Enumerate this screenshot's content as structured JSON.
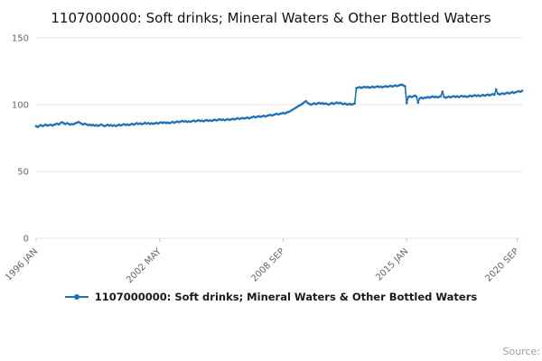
{
  "page": {
    "title": "1107000000: Soft drinks; Mineral Waters & Other Bottled Waters",
    "source_label": "Source:"
  },
  "legend": {
    "items": [
      {
        "label": "1107000000: Soft drinks; Mineral Waters & Other Bottled Waters"
      }
    ]
  },
  "colors": {
    "line": "#1d70b8",
    "grid": "#e4e4e4",
    "tick": "#cccccc",
    "axis_text": "#666666"
  },
  "chart_data": {
    "type": "line",
    "title": "1107000000: Soft drinks; Mineral Waters & Other Bottled Waters",
    "frequency": "monthly",
    "x_start": "1996 JAN",
    "x_end": "2020 DEC",
    "ylim": [
      0,
      150
    ],
    "yticks": [
      0,
      50,
      100,
      150
    ],
    "xticks": [
      {
        "label": "1996 JAN",
        "index": 0
      },
      {
        "label": "2002 MAY",
        "index": 76
      },
      {
        "label": "2008 SEP",
        "index": 152
      },
      {
        "label": "2015 JAN",
        "index": 228
      },
      {
        "label": "2020 SEP",
        "index": 296
      }
    ],
    "grid": true,
    "legend_position": "bottom",
    "series": [
      {
        "name": "1107000000: Soft drinks; Mineral Waters & Other Bottled Waters",
        "values": [
          84.0,
          83.3,
          84.2,
          84.7,
          83.9,
          84.5,
          85.1,
          84.3,
          84.8,
          85.0,
          84.4,
          84.9,
          85.4,
          85.9,
          85.2,
          86.3,
          86.9,
          86.1,
          85.5,
          86.2,
          85.7,
          85.1,
          85.6,
          85.3,
          86.0,
          86.5,
          87.0,
          86.4,
          85.7,
          85.2,
          85.8,
          85.3,
          84.7,
          85.1,
          84.5,
          84.9,
          84.3,
          84.8,
          84.1,
          84.6,
          85.2,
          84.5,
          83.9,
          84.4,
          85.0,
          84.3,
          84.7,
          84.2,
          84.6,
          84.0,
          84.5,
          85.1,
          84.4,
          84.9,
          85.5,
          84.8,
          85.3,
          84.7,
          85.2,
          85.7,
          85.1,
          85.6,
          86.2,
          85.5,
          86.0,
          85.4,
          85.9,
          86.4,
          85.8,
          86.3,
          85.7,
          86.1,
          85.6,
          86.0,
          86.5,
          85.9,
          86.4,
          86.9,
          86.3,
          86.8,
          86.2,
          86.7,
          86.1,
          86.6,
          87.1,
          86.5,
          87.0,
          87.5,
          86.9,
          87.4,
          87.9,
          87.3,
          87.7,
          87.1,
          87.6,
          87.2,
          87.7,
          88.1,
          87.5,
          88.0,
          88.4,
          87.8,
          88.2,
          87.6,
          88.1,
          88.5,
          87.9,
          88.3,
          87.9,
          88.4,
          88.8,
          88.2,
          88.7,
          89.1,
          88.5,
          88.9,
          88.3,
          88.8,
          89.2,
          88.6,
          89.0,
          89.5,
          88.9,
          89.4,
          89.9,
          89.3,
          89.7,
          90.1,
          89.6,
          90.0,
          90.4,
          89.8,
          90.2,
          90.7,
          91.1,
          90.5,
          91.0,
          91.4,
          90.9,
          91.3,
          91.7,
          91.2,
          91.6,
          92.0,
          92.4,
          91.9,
          92.3,
          92.8,
          93.2,
          92.7,
          93.1,
          93.5,
          93.9,
          93.4,
          94.1,
          94.5,
          94.9,
          95.7,
          96.4,
          97.1,
          97.9,
          98.7,
          99.4,
          100.1,
          100.9,
          101.9,
          102.7,
          101.4,
          100.7,
          100.1,
          100.5,
          101.1,
          100.4,
          100.9,
          101.4,
          100.8,
          101.2,
          100.6,
          101.0,
          100.5,
          100.1,
          100.7,
          101.3,
          100.6,
          101.1,
          101.7,
          101.0,
          101.5,
          100.9,
          100.4,
          100.9,
          100.3,
          100.2,
          100.6,
          100.1,
          100.5,
          101.0,
          112.4,
          112.8,
          113.2,
          112.6,
          113.0,
          113.4,
          112.9,
          113.3,
          112.7,
          113.1,
          113.5,
          112.9,
          113.4,
          113.8,
          113.2,
          113.6,
          113.0,
          113.5,
          113.9,
          113.4,
          113.8,
          114.2,
          113.6,
          114.0,
          114.5,
          113.9,
          114.3,
          114.8,
          115.0,
          114.4,
          113.8,
          101.2,
          105.8,
          106.3,
          105.7,
          106.2,
          106.8,
          106.1,
          101.5,
          104.8,
          105.3,
          104.7,
          105.2,
          105.3,
          105.8,
          105.2,
          105.7,
          106.2,
          105.6,
          106.0,
          105.5,
          105.9,
          106.4,
          109.8,
          105.8,
          105.2,
          105.7,
          106.1,
          105.5,
          106.0,
          106.4,
          105.8,
          106.3,
          105.7,
          106.2,
          106.6,
          106.0,
          106.4,
          105.8,
          106.3,
          106.8,
          106.2,
          106.7,
          107.1,
          106.5,
          107.0,
          106.4,
          106.9,
          107.3,
          106.7,
          107.2,
          107.6,
          107.0,
          107.5,
          108.0,
          107.4,
          111.5,
          108.3,
          107.7,
          108.2,
          108.6,
          108.0,
          108.5,
          109.0,
          108.4,
          108.9,
          109.4,
          108.8,
          109.3,
          109.8,
          110.2,
          109.6,
          110.4
        ]
      }
    ]
  }
}
